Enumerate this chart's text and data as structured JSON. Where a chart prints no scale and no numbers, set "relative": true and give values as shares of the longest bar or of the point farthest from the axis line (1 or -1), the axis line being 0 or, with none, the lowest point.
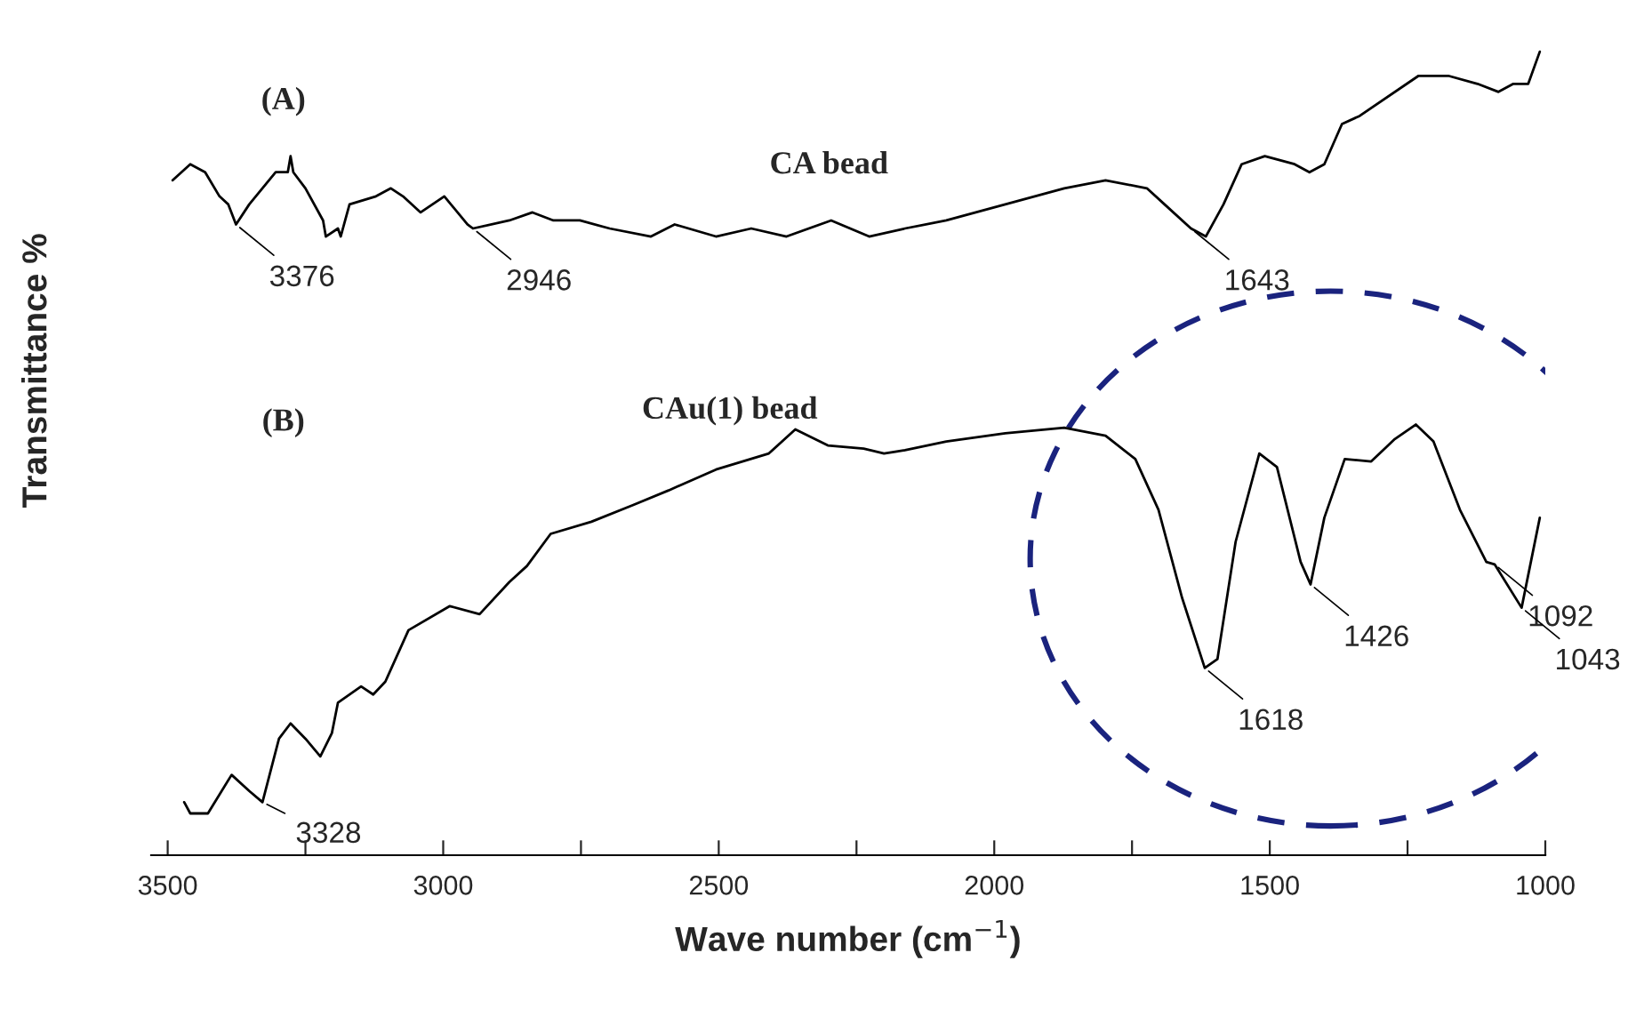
{
  "chart_data": {
    "type": "line",
    "relative": true,
    "xlabel": "Wave number (cm$^{−1}$)",
    "ylabel": "Transmittance %",
    "xlim": [
      3530,
      1000
    ],
    "xticks": [
      3500,
      {
        "value": 3250,
        "label": null
      },
      3000,
      {
        "value": 2750,
        "label": null
      },
      2500,
      {
        "value": 2250,
        "label": null
      },
      2000,
      {
        "value": 1750,
        "label": null
      },
      1500,
      {
        "value": 1250,
        "label": null
      },
      1000
    ],
    "grid": false,
    "legend": false,
    "marker": "none",
    "line_style": "solid",
    "series": [
      {
        "name": "CA bead",
        "color": "#000000",
        "x": [
          3491,
          3459,
          3432,
          3406,
          3390,
          3376,
          3352,
          3304,
          3282,
          3277,
          3272,
          3250,
          3218,
          3213,
          3191,
          3186,
          3170,
          3122,
          3095,
          3073,
          3041,
          2998,
          2956,
          2946,
          2880,
          2838,
          2800,
          2752,
          2698,
          2623,
          2580,
          2505,
          2441,
          2377,
          2296,
          2227,
          2162,
          2087,
          1980,
          1873,
          1798,
          1723,
          1691,
          1643,
          1616,
          1584,
          1551,
          1509,
          1455,
          1428,
          1401,
          1369,
          1337,
          1230,
          1176,
          1123,
          1085,
          1058,
          1031,
          1010
        ],
        "values": [
          0.84,
          0.86,
          0.85,
          0.82,
          0.81,
          0.785,
          0.81,
          0.85,
          0.85,
          0.87,
          0.85,
          0.83,
          0.79,
          0.77,
          0.78,
          0.77,
          0.81,
          0.82,
          0.83,
          0.82,
          0.8,
          0.82,
          0.785,
          0.78,
          0.79,
          0.8,
          0.79,
          0.79,
          0.78,
          0.77,
          0.785,
          0.77,
          0.78,
          0.77,
          0.79,
          0.77,
          0.78,
          0.79,
          0.81,
          0.83,
          0.84,
          0.83,
          0.81,
          0.78,
          0.77,
          0.81,
          0.86,
          0.87,
          0.86,
          0.85,
          0.86,
          0.91,
          0.92,
          0.97,
          0.97,
          0.96,
          0.95,
          0.96,
          0.96,
          1.0
        ]
      },
      {
        "name": "CAu(1) bead",
        "color": "#000000",
        "x": [
          3470,
          3459,
          3427,
          3384,
          3352,
          3328,
          3298,
          3277,
          3250,
          3223,
          3202,
          3191,
          3149,
          3127,
          3105,
          3063,
          2988,
          2934,
          2880,
          2848,
          2805,
          2731,
          2655,
          2591,
          2505,
          2409,
          2361,
          2302,
          2237,
          2200,
          2162,
          2087,
          1980,
          1873,
          1798,
          1744,
          1702,
          1659,
          1618,
          1595,
          1562,
          1519,
          1487,
          1444,
          1426,
          1401,
          1364,
          1316,
          1273,
          1235,
          1203,
          1155,
          1107,
          1092,
          1043,
          1010
        ],
        "values": [
          0.066,
          0.052,
          0.052,
          0.1,
          0.08,
          0.066,
          0.145,
          0.164,
          0.145,
          0.123,
          0.152,
          0.19,
          0.21,
          0.2,
          0.216,
          0.28,
          0.31,
          0.3,
          0.34,
          0.36,
          0.4,
          0.415,
          0.436,
          0.454,
          0.48,
          0.5,
          0.53,
          0.51,
          0.506,
          0.5,
          0.504,
          0.515,
          0.525,
          0.532,
          0.522,
          0.493,
          0.43,
          0.32,
          0.233,
          0.244,
          0.39,
          0.5,
          0.483,
          0.365,
          0.337,
          0.42,
          0.493,
          0.49,
          0.518,
          0.536,
          0.515,
          0.43,
          0.365,
          0.362,
          0.308,
          0.42
        ]
      }
    ],
    "annotations": [
      "(A)",
      "(B)",
      {
        "text": "3376",
        "x": 3376,
        "y": 0.785
      },
      {
        "text": "2946",
        "x": 2946,
        "y": 0.78
      },
      {
        "text": "1643",
        "x": 1643,
        "y": 0.78
      },
      {
        "text": "3328",
        "x": 3328,
        "y": 0.066
      },
      {
        "text": "1618",
        "x": 1618,
        "y": 0.233
      },
      {
        "text": "1426",
        "x": 1426,
        "y": 0.337
      },
      {
        "text": "1092",
        "x": 1092,
        "y": 0.362
      },
      {
        "text": "1043",
        "x": 1043,
        "y": 0.308
      }
    ]
  }
}
